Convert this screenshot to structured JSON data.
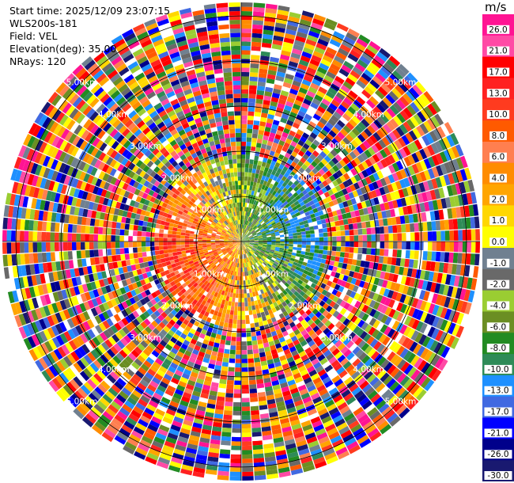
{
  "header": {
    "start_time": "Start time: 2025/12/09 23:07:15",
    "instrument": "WLS200s-181",
    "field": "Field: VEL",
    "elevation": "Elevation(deg): 35.00",
    "nrays": "NRays: 120"
  },
  "colorbar": {
    "unit": "m/s",
    "levels": [
      "26.0",
      "21.0",
      "17.0",
      "13.0",
      "10.0",
      "8.0",
      "6.0",
      "4.0",
      "2.0",
      "1.0",
      "0.0",
      "-1.0",
      "-2.0",
      "-4.0",
      "-6.0",
      "-8.0",
      "-10.0",
      "-13.0",
      "-17.0",
      "-21.0",
      "-26.0",
      "-30.0"
    ],
    "colors": [
      "#ff1493",
      "#ff4aa5",
      "#ff0000",
      "#ff2020",
      "#ff3b1f",
      "#ff5a00",
      "#ff7f50",
      "#ff8c00",
      "#ffa500",
      "#ffd700",
      "#ffff00",
      "#708090",
      "#696969",
      "#9acd32",
      "#6b8e23",
      "#228b22",
      "#2e8b57",
      "#1e90ff",
      "#4169e1",
      "#0000ff",
      "#00008b",
      "#191970"
    ]
  },
  "range_labels": [
    "1.00km",
    "2.00km",
    "3.00km",
    "4.00km",
    "5.00km"
  ],
  "chart_data": {
    "type": "heatmap",
    "title": "",
    "field": "VEL",
    "units": "m/s",
    "elevation_deg": 35.0,
    "n_rays": 120,
    "range_rings_km": [
      1,
      2,
      3,
      4,
      5
    ],
    "color_levels": [
      -30,
      -26,
      -21,
      -17,
      -13,
      -10,
      -8,
      -6,
      -4,
      -2,
      -1,
      0,
      1,
      2,
      4,
      6,
      8,
      10,
      13,
      17,
      21,
      26
    ]
  }
}
